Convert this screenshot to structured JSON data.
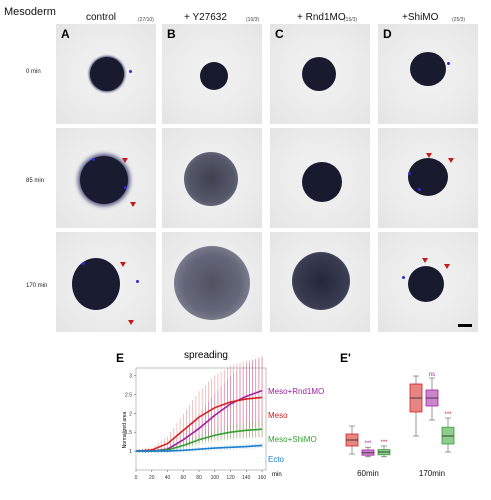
{
  "figure": {
    "title": "Mesoderm",
    "columns": [
      {
        "label": "control",
        "count": "(27/10)"
      },
      {
        "label": "+ Y27632",
        "count": "(10/3)"
      },
      {
        "label": "+ Rnd1MO",
        "count": "(15/3)"
      },
      {
        "label": "+ShiMO",
        "count": "(25/3)"
      }
    ],
    "rows": [
      "0 min",
      "85 min",
      "170 min"
    ],
    "panel_letters": [
      "A",
      "B",
      "C",
      "D"
    ]
  },
  "colors": {
    "meso": "#d42020",
    "meso_rnd1mo": "#a020a0",
    "meso_shimo": "#33a033",
    "ecto": "#1e7fd0",
    "sphere": "#1b1d33",
    "dye": "#2b2bd4",
    "arrowhead": "#c41a1a"
  },
  "chart_data": [
    {
      "type": "line",
      "panel_label": "E",
      "title": "spreading",
      "xlabel": "min",
      "ylabel": "Normalized area",
      "x": [
        0,
        20,
        40,
        60,
        80,
        100,
        120,
        140,
        160
      ],
      "xlim": [
        0,
        165
      ],
      "ylim": [
        0.5,
        3.2
      ],
      "y_ticks": [
        1,
        1.5,
        2,
        2.5,
        3
      ],
      "series": [
        {
          "name": "Meso+Rnd1MO",
          "color": "#a020a0",
          "values": [
            1.0,
            1.0,
            1.05,
            1.3,
            1.6,
            1.95,
            2.25,
            2.45,
            2.6
          ]
        },
        {
          "name": "Meso",
          "color": "#d42020",
          "values": [
            1.0,
            1.03,
            1.2,
            1.55,
            1.9,
            2.15,
            2.3,
            2.38,
            2.42
          ]
        },
        {
          "name": "Meso+ShiMO",
          "color": "#33a033",
          "values": [
            1.0,
            1.0,
            1.03,
            1.15,
            1.3,
            1.42,
            1.5,
            1.55,
            1.58
          ]
        },
        {
          "name": "Ecto",
          "color": "#1e7fd0",
          "values": [
            1.0,
            1.0,
            1.0,
            1.02,
            1.05,
            1.08,
            1.1,
            1.12,
            1.15
          ]
        }
      ]
    },
    {
      "type": "box",
      "panel_label": "E'",
      "categories": [
        "60min",
        "170min"
      ],
      "groups": [
        {
          "category": "60min",
          "boxes": [
            {
              "color": "#d42020",
              "q1": 1.25,
              "median": 1.4,
              "q3": 1.55,
              "min": 1.05,
              "max": 1.75,
              "mark": ""
            },
            {
              "color": "#a020a0",
              "q1": 1.02,
              "median": 1.08,
              "q3": 1.15,
              "min": 0.98,
              "max": 1.22,
              "mark": "***"
            },
            {
              "color": "#33a033",
              "q1": 1.03,
              "median": 1.1,
              "q3": 1.16,
              "min": 0.98,
              "max": 1.25,
              "mark": "***"
            }
          ]
        },
        {
          "category": "170min",
          "boxes": [
            {
              "color": "#d42020",
              "q1": 2.1,
              "median": 2.45,
              "q3": 2.8,
              "min": 1.5,
              "max": 3.0,
              "mark": ""
            },
            {
              "color": "#a020a0",
              "q1": 2.25,
              "median": 2.45,
              "q3": 2.65,
              "min": 1.9,
              "max": 2.95,
              "mark": "ns"
            },
            {
              "color": "#33a033",
              "q1": 1.3,
              "median": 1.5,
              "q3": 1.72,
              "min": 1.1,
              "max": 1.95,
              "mark": "***"
            }
          ]
        }
      ]
    }
  ]
}
